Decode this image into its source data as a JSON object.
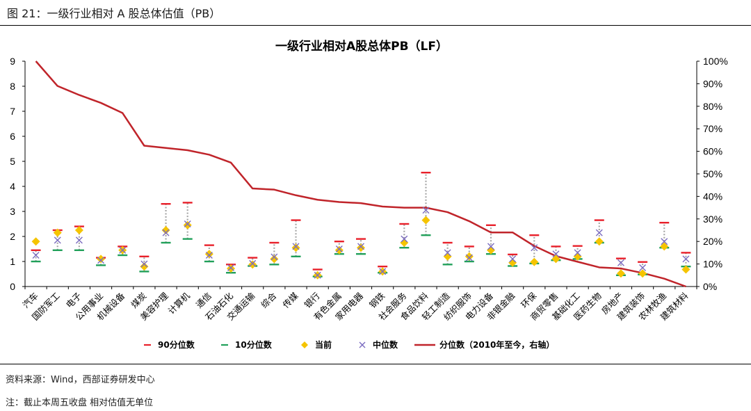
{
  "figure": {
    "caption": "图 21：一级行业相对 A 股总体估值（PB）",
    "source": "资料来源：Wind，西部证券研发中心",
    "note": "注：截止本周五收盘 相对估值无单位"
  },
  "colors": {
    "p90": "#e8202a",
    "p10": "#21a05a",
    "current": "#f5c400",
    "median": "#7b6cc0",
    "percentile_line": "#c0242a",
    "connector": "#a6a6a6"
  },
  "chart_data": {
    "type": "scatter",
    "title": "一级行业相对A股总体PB（LF）",
    "categories": [
      "汽车",
      "国防军工",
      "电子",
      "公用事业",
      "机械设备",
      "煤炭",
      "美容护理",
      "计算机",
      "通信",
      "石油石化",
      "交通运输",
      "综合",
      "传媒",
      "银行",
      "有色金属",
      "家用电器",
      "钢铁",
      "社会服务",
      "食品饮料",
      "轻工制造",
      "纺织服饰",
      "电力设备",
      "非银金融",
      "环保",
      "商贸零售",
      "基础化工",
      "医药生物",
      "房地产",
      "建筑装饰",
      "农林牧渔",
      "建筑材料"
    ],
    "y_left": {
      "min": 0,
      "max": 9,
      "ticks": [
        "0",
        "1",
        "2",
        "3",
        "4",
        "5",
        "6",
        "7",
        "8",
        "9"
      ]
    },
    "y_right": {
      "min": 0,
      "max": 100,
      "ticks": [
        "0%",
        "10%",
        "20%",
        "30%",
        "40%",
        "50%",
        "60%",
        "70%",
        "80%",
        "90%",
        "100%"
      ]
    },
    "series": [
      {
        "name": "90分位数",
        "axis": "left",
        "marker": "dash",
        "values": [
          1.45,
          2.25,
          2.4,
          1.15,
          1.6,
          1.2,
          3.3,
          3.35,
          1.65,
          0.88,
          1.15,
          1.75,
          2.65,
          0.68,
          1.8,
          1.9,
          0.8,
          2.5,
          4.55,
          1.75,
          1.6,
          2.45,
          1.28,
          2.05,
          1.6,
          1.62,
          2.65,
          1.12,
          0.98,
          2.55,
          1.35
        ]
      },
      {
        "name": "10分位数",
        "axis": "left",
        "marker": "dash",
        "values": [
          1.0,
          1.45,
          1.45,
          0.85,
          1.25,
          0.6,
          1.75,
          1.9,
          1.0,
          0.55,
          0.82,
          0.88,
          1.2,
          0.4,
          1.3,
          1.3,
          0.55,
          1.55,
          2.05,
          0.88,
          1.0,
          1.3,
          0.82,
          0.92,
          1.05,
          1.1,
          1.75,
          0.45,
          0.48,
          1.55,
          0.8
        ]
      },
      {
        "name": "当前",
        "axis": "left",
        "marker": "diamond",
        "values": [
          1.8,
          2.15,
          2.25,
          1.1,
          1.45,
          0.8,
          2.25,
          2.45,
          1.3,
          0.72,
          0.88,
          1.1,
          1.55,
          0.45,
          1.45,
          1.55,
          0.6,
          1.75,
          2.65,
          1.2,
          1.2,
          1.45,
          0.95,
          0.98,
          1.1,
          1.2,
          1.8,
          0.52,
          0.52,
          1.6,
          0.68
        ]
      },
      {
        "name": "中位数",
        "axis": "left",
        "marker": "cross",
        "values": [
          1.25,
          1.85,
          1.85,
          1.05,
          1.45,
          0.9,
          2.15,
          2.5,
          1.25,
          0.75,
          0.92,
          1.18,
          1.6,
          0.45,
          1.5,
          1.6,
          0.6,
          1.9,
          3.05,
          1.35,
          1.15,
          1.6,
          1.1,
          1.55,
          1.3,
          1.35,
          2.15,
          0.95,
          0.75,
          1.8,
          1.1
        ]
      },
      {
        "name": "分位数（2010年至今，右轴）",
        "axis": "right",
        "marker": "line",
        "values": [
          100,
          89,
          85,
          81.5,
          77,
          62.5,
          61.5,
          60.5,
          58.5,
          55,
          43.5,
          43,
          40.5,
          38.5,
          37.5,
          37,
          35.5,
          35,
          35,
          33,
          29,
          24,
          24,
          18,
          13.5,
          11,
          8.5,
          8,
          6,
          3.5,
          0
        ]
      }
    ],
    "legend": {
      "position": "bottom"
    }
  }
}
